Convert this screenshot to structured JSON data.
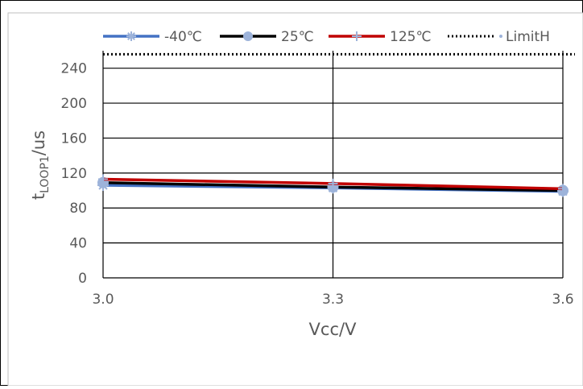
{
  "chart_data": {
    "type": "line",
    "title": "",
    "xlabel": "Vcc/V",
    "ylabel": {
      "main": "t",
      "sub": "LOOP1",
      "unit": "/us"
    },
    "x": [
      3.0,
      3.3,
      3.6
    ],
    "x_tick_labels": [
      "3.0",
      "3.3",
      "3.6"
    ],
    "ylim": [
      0,
      260
    ],
    "y_ticks": [
      0,
      40,
      80,
      120,
      160,
      200,
      240
    ],
    "grid": true,
    "legend_position": "top",
    "series": [
      {
        "name": "-40℃",
        "values": [
          106,
          103,
          99
        ],
        "color": "#4472C4",
        "marker": "asterisk"
      },
      {
        "name": "25℃",
        "values": [
          109,
          104,
          100
        ],
        "color": "#000000",
        "marker": "circle"
      },
      {
        "name": "125℃",
        "values": [
          113,
          108,
          102
        ],
        "color": "#C00000",
        "marker": "plus"
      },
      {
        "name": "LimitH",
        "values": [
          256,
          256,
          256
        ],
        "color": "#000000",
        "marker": "none",
        "dashed": true
      }
    ]
  }
}
